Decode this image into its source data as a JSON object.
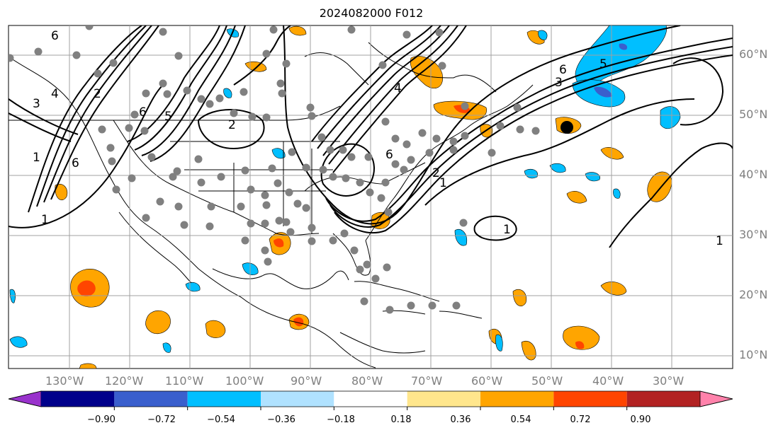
{
  "title": "2024082000 F012",
  "lat_labels": [
    "60°N",
    "50°N",
    "40°N",
    "30°N",
    "20°N",
    "10°N"
  ],
  "lon_labels": [
    "130°W",
    "120°W",
    "110°W",
    "100°W",
    "90°W",
    "80°W",
    "70°W",
    "60°W",
    "50°W",
    "40°W",
    "30°W"
  ],
  "contour_labels": [
    "6",
    "4",
    "3",
    "2",
    "5",
    "6",
    "2",
    "6",
    "1",
    "6",
    "5",
    "4",
    "6",
    "3",
    "2",
    "1",
    "1",
    "1",
    "1"
  ],
  "colorbar": {
    "ticks": [
      "−0.90",
      "−0.72",
      "−0.54",
      "−0.36",
      "−0.18",
      "0.18",
      "0.36",
      "0.54",
      "0.72",
      "0.90"
    ],
    "colors": [
      "#9932cc",
      "#00008b",
      "#3a5fcd",
      "#00bfff",
      "#b0e2ff",
      "#ffffff",
      "#ffe68c",
      "#ffa500",
      "#ff4500",
      "#b22222",
      "#ff82ab"
    ]
  },
  "colors": {
    "grid": "#a0a0a0",
    "station_dot": "#808080",
    "contour": "#000000",
    "label": "#7f7f7f"
  }
}
